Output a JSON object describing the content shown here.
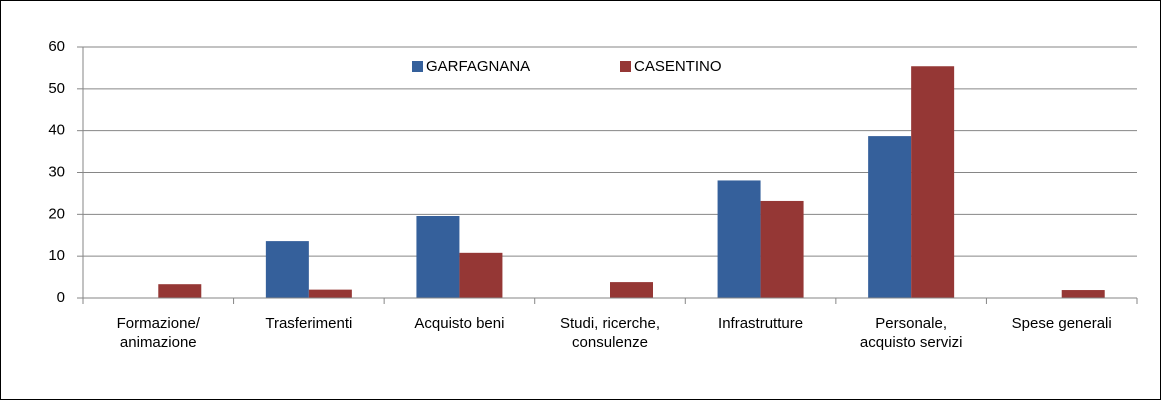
{
  "chart_data": {
    "type": "bar",
    "categories": [
      "Formazione/\nanimazione",
      "Trasferimenti",
      "Acquisto beni",
      "Studi, ricerche,\nconsulenze",
      "Infrastrutture",
      "Personale,\nacquisto servizi",
      "Spese generali"
    ],
    "series": [
      {
        "name": "GARFAGNANA",
        "color": "#35609b",
        "values": [
          0,
          13.6,
          19.6,
          0,
          28.1,
          38.7,
          0
        ]
      },
      {
        "name": "CASENTINO",
        "color": "#953735",
        "values": [
          3.3,
          2.0,
          10.8,
          3.8,
          23.2,
          55.4,
          1.9
        ]
      }
    ],
    "ylim": [
      0,
      60
    ],
    "yticks": [
      0,
      10,
      20,
      30,
      40,
      50,
      60
    ],
    "grid": true,
    "legend": "top"
  }
}
